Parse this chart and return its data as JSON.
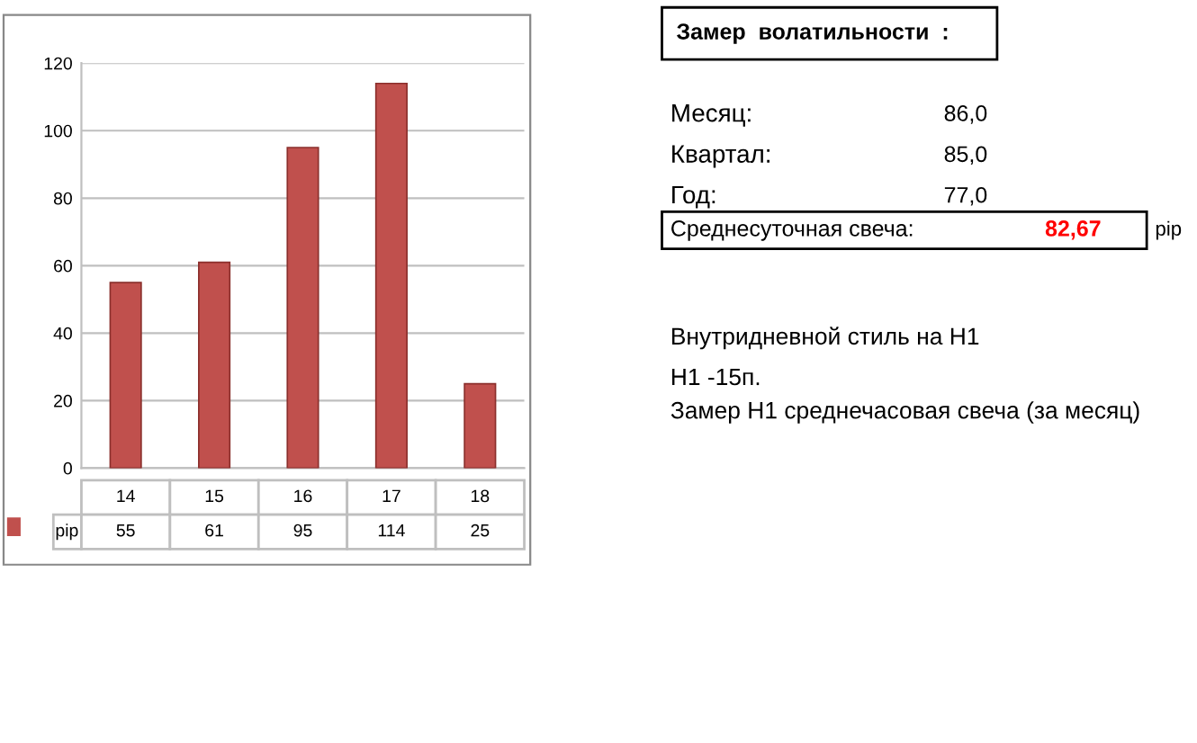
{
  "chart_data": {
    "type": "bar",
    "categories": [
      "14",
      "15",
      "16",
      "17",
      "18"
    ],
    "series": [
      {
        "name": "pip",
        "color": "#c0504d",
        "values": [
          55,
          61,
          95,
          114,
          25
        ]
      }
    ],
    "ylim": [
      0,
      120
    ],
    "yticks": [
      0,
      20,
      40,
      60,
      80,
      100,
      120
    ],
    "grid": "y",
    "data_labels": true,
    "legend": "bottom",
    "annotations": [
      "Замер  волатильности  :",
      "Месяц:",
      "86,0",
      "Квартал:",
      "85,0",
      "Год:",
      "77,0",
      "Среднесуточная свеча:",
      "82,67",
      "pip",
      "Внутридневной стиль на H1",
      "H1 -15п.",
      "Замер H1 среднечасовая свеча (за месяц)"
    ]
  }
}
